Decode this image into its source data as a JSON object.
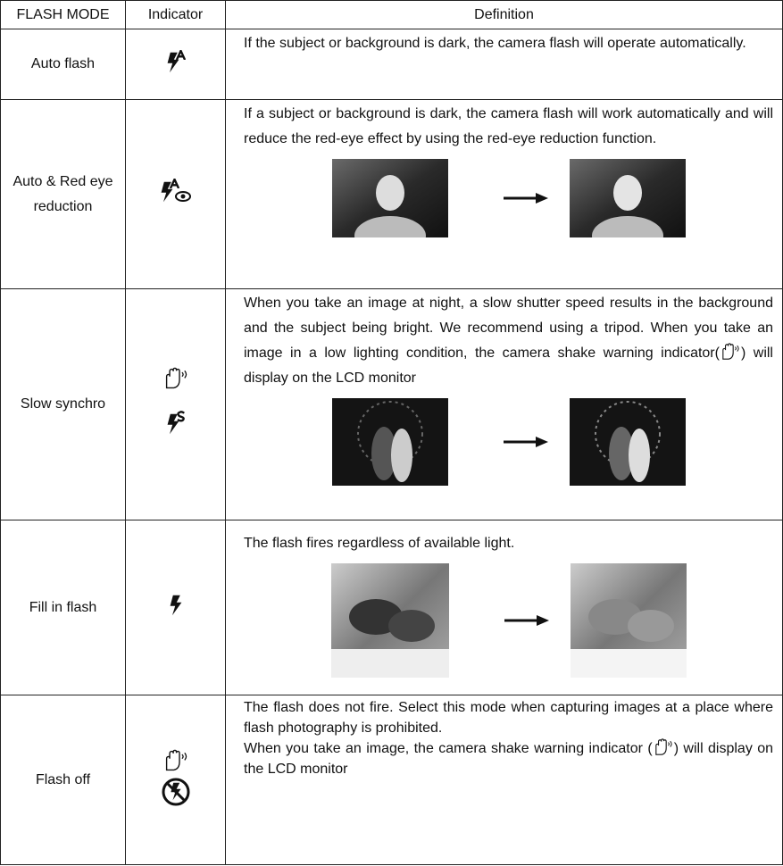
{
  "table": {
    "header": [
      "FLASH MODE",
      "Indicator",
      "Definition"
    ],
    "rows": [
      {
        "mode": "Auto flash",
        "definition": [
          "If the subject or background is dark, the camera flash will operate automatically."
        ]
      },
      {
        "mode": "Auto & Red eye reduction",
        "definition": [
          "If a subject or background is dark, the camera flash will work automatically and will reduce the red-eye effect by using the red-eye reduction function."
        ]
      },
      {
        "mode": "Slow synchro",
        "definition": [
          "When you take an image at night, a slow shutter speed results in the background and the subject being bright. We recommend using a tripod. When you take an image in a low lighting condition, the camera shake warning indicator(",
          ") will display on the LCD monitor"
        ]
      },
      {
        "mode": "Fill in flash",
        "definition": [
          "The flash fires regardless of available light."
        ]
      },
      {
        "mode": "Flash off",
        "definition": [
          "The flash does not fire. Select this mode when capturing images at a place where flash photography is prohibited."
        ],
        "note": [
          "When you take an image, the camera shake warning indicator (",
          ") will display on the LCD monitor"
        ]
      }
    ]
  }
}
